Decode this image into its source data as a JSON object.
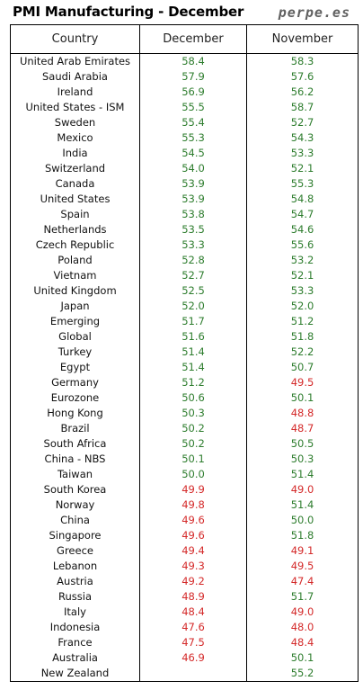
{
  "header": {
    "title": "PMI Manufacturing - December",
    "brand": "perpe.es"
  },
  "colors": {
    "expansion": "#2e7d2e",
    "contraction": "#d42a2a"
  },
  "chart_data": {
    "type": "table",
    "title": "PMI Manufacturing - December",
    "columns": [
      "Country",
      "December",
      "November"
    ],
    "threshold": 50,
    "rows": [
      {
        "country": "United Arab Emirates",
        "december": "58.4",
        "november": "58.3"
      },
      {
        "country": "Saudi Arabia",
        "december": "57.9",
        "november": "57.6"
      },
      {
        "country": "Ireland",
        "december": "56.9",
        "november": "56.2"
      },
      {
        "country": "United States - ISM",
        "december": "55.5",
        "november": "58.7"
      },
      {
        "country": "Sweden",
        "december": "55.4",
        "november": "52.7"
      },
      {
        "country": "Mexico",
        "december": "55.3",
        "november": "54.3"
      },
      {
        "country": "India",
        "december": "54.5",
        "november": "53.3"
      },
      {
        "country": "Switzerland",
        "december": "54.0",
        "november": "52.1"
      },
      {
        "country": "Canada",
        "december": "53.9",
        "november": "55.3"
      },
      {
        "country": "United States",
        "december": "53.9",
        "november": "54.8"
      },
      {
        "country": "Spain",
        "december": "53.8",
        "november": "54.7"
      },
      {
        "country": "Netherlands",
        "december": "53.5",
        "november": "54.6"
      },
      {
        "country": "Czech Republic",
        "december": "53.3",
        "november": "55.6"
      },
      {
        "country": "Poland",
        "december": "52.8",
        "november": "53.2"
      },
      {
        "country": "Vietnam",
        "december": "52.7",
        "november": "52.1"
      },
      {
        "country": "United Kingdom",
        "december": "52.5",
        "november": "53.3"
      },
      {
        "country": "Japan",
        "december": "52.0",
        "november": "52.0"
      },
      {
        "country": "Emerging",
        "december": "51.7",
        "november": "51.2"
      },
      {
        "country": "Global",
        "december": "51.6",
        "november": "51.8"
      },
      {
        "country": "Turkey",
        "december": "51.4",
        "november": "52.2"
      },
      {
        "country": "Egypt",
        "december": "51.4",
        "november": "50.7"
      },
      {
        "country": "Germany",
        "december": "51.2",
        "november": "49.5"
      },
      {
        "country": "Eurozone",
        "december": "50.6",
        "november": "50.1"
      },
      {
        "country": "Hong Kong",
        "december": "50.3",
        "november": "48.8"
      },
      {
        "country": "Brazil",
        "december": "50.2",
        "november": "48.7"
      },
      {
        "country": "South Africa",
        "december": "50.2",
        "november": "50.5"
      },
      {
        "country": "China - NBS",
        "december": "50.1",
        "november": "50.3"
      },
      {
        "country": "Taiwan",
        "december": "50.0",
        "november": "51.4"
      },
      {
        "country": "South Korea",
        "december": "49.9",
        "november": "49.0"
      },
      {
        "country": "Norway",
        "december": "49.8",
        "november": "51.4"
      },
      {
        "country": "China",
        "december": "49.6",
        "november": "50.0"
      },
      {
        "country": "Singapore",
        "december": "49.6",
        "november": "51.8"
      },
      {
        "country": "Greece",
        "december": "49.4",
        "november": "49.1"
      },
      {
        "country": "Lebanon",
        "december": "49.3",
        "november": "49.5"
      },
      {
        "country": "Austria",
        "december": "49.2",
        "november": "47.4"
      },
      {
        "country": "Russia",
        "december": "48.9",
        "november": "51.7"
      },
      {
        "country": "Italy",
        "december": "48.4",
        "november": "49.0"
      },
      {
        "country": "Indonesia",
        "december": "47.6",
        "november": "48.0"
      },
      {
        "country": "France",
        "december": "47.5",
        "november": "48.4"
      },
      {
        "country": "Australia",
        "december": "46.9",
        "november": "50.1"
      },
      {
        "country": "New Zealand",
        "december": "",
        "november": "55.2"
      }
    ]
  }
}
